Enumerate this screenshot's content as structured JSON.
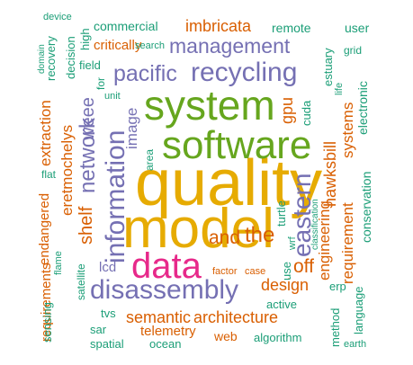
{
  "words": {
    "quality": "quality",
    "model": "model",
    "software": "software",
    "system": "system",
    "information": "information",
    "data": "data",
    "disassembly": "disassembly",
    "recycling": "recycling",
    "pacific": "pacific",
    "management": "management",
    "eastern": "eastern",
    "architecture": "architecture",
    "semantic": "semantic",
    "network": "network",
    "imbricata": "imbricata",
    "and": "and",
    "the": "the",
    "hawksbill": "hawksbill",
    "engineering": "engineering",
    "requirement": "requirement",
    "systems": "systems",
    "design": "design",
    "shelf": "shelf",
    "eretmochelys": "eretmochelys",
    "extraction": "extraction",
    "weee": "weee",
    "off": "off",
    "gpu": "gpu",
    "cuda": "cuda",
    "image": "image",
    "commercial": "commercial",
    "remote": "remote",
    "user": "user",
    "critically": "critically",
    "search": "search",
    "decision": "decision",
    "high": "high",
    "device": "device",
    "recovery": "recovery",
    "domain": "domain",
    "field": "field",
    "for": "for",
    "unit": "unit",
    "estuary": "estuary",
    "grid": "grid",
    "life": "life",
    "electronic": "electronic",
    "area": "area",
    "classification": "classification",
    "conservation": "conservation",
    "turtle": "turtle",
    "wrf": "wrf",
    "flat": "flat",
    "endangered": "endangered",
    "flame": "flame",
    "requirements": "requirements",
    "lcd": "lcd",
    "satellite": "satellite",
    "factor": "factor",
    "case": "case",
    "use": "use",
    "erp": "erp",
    "active": "active",
    "language": "language",
    "sensing": "sensing",
    "tvs": "tvs",
    "sar": "sar",
    "telemetry": "telemetry",
    "spatial": "spatial",
    "ocean": "ocean",
    "web": "web",
    "algorithm": "algorithm",
    "method": "method",
    "earth": "earth"
  },
  "colors": {
    "green": "#1b9e77",
    "orange": "#d95f02",
    "purple": "#7570b3",
    "magenta": "#e7298a",
    "lime": "#66a61e",
    "gold": "#e6ab02"
  }
}
